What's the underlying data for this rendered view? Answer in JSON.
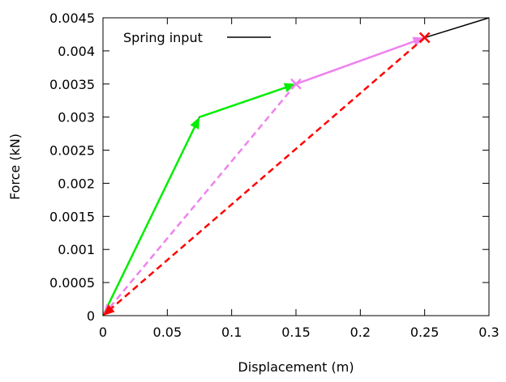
{
  "chart_data": {
    "type": "line",
    "xlabel": "Displacement (m)",
    "ylabel": "Force (kN)",
    "xlim": [
      0,
      0.3
    ],
    "ylim": [
      0,
      0.0045
    ],
    "xticks": [
      "0",
      "0.05",
      "0.1",
      "0.15",
      "0.2",
      "0.25",
      "0.3"
    ],
    "yticks": [
      "0",
      "0.0005",
      "0.001",
      "0.0015",
      "0.002",
      "0.0025",
      "0.003",
      "0.0035",
      "0.004",
      "0.0045"
    ],
    "grid": false,
    "legend_position": "top-left",
    "series": [
      {
        "name": "Spring input",
        "color": "#000000",
        "style": "solid",
        "points": [
          [
            0,
            0
          ],
          [
            0.075,
            0.003
          ],
          [
            0.15,
            0.0035
          ],
          [
            0.25,
            0.0042
          ],
          [
            0.3,
            0.0045
          ]
        ]
      }
    ],
    "arrows": [
      {
        "color": "#00ee00",
        "style": "solid",
        "from": [
          0,
          0
        ],
        "to": [
          0.075,
          0.003
        ]
      },
      {
        "color": "#00ee00",
        "style": "solid",
        "from": [
          0.075,
          0.003
        ],
        "to": [
          0.15,
          0.0035
        ]
      },
      {
        "color": "#ee82ee",
        "style": "solid",
        "from": [
          0.15,
          0.0035
        ],
        "to": [
          0.25,
          0.0042
        ]
      },
      {
        "color": "#ee82ee",
        "style": "dashed",
        "from": [
          0.15,
          0.0035
        ],
        "to": [
          0,
          0
        ]
      },
      {
        "color": "#ff0000",
        "style": "dashed",
        "from": [
          0.25,
          0.0042
        ],
        "to": [
          0,
          0
        ]
      }
    ],
    "markers": [
      {
        "color": "#ee82ee",
        "shape": "x",
        "at": [
          0.15,
          0.0035
        ]
      },
      {
        "color": "#ff0000",
        "shape": "x",
        "at": [
          0.25,
          0.0042
        ]
      }
    ]
  }
}
